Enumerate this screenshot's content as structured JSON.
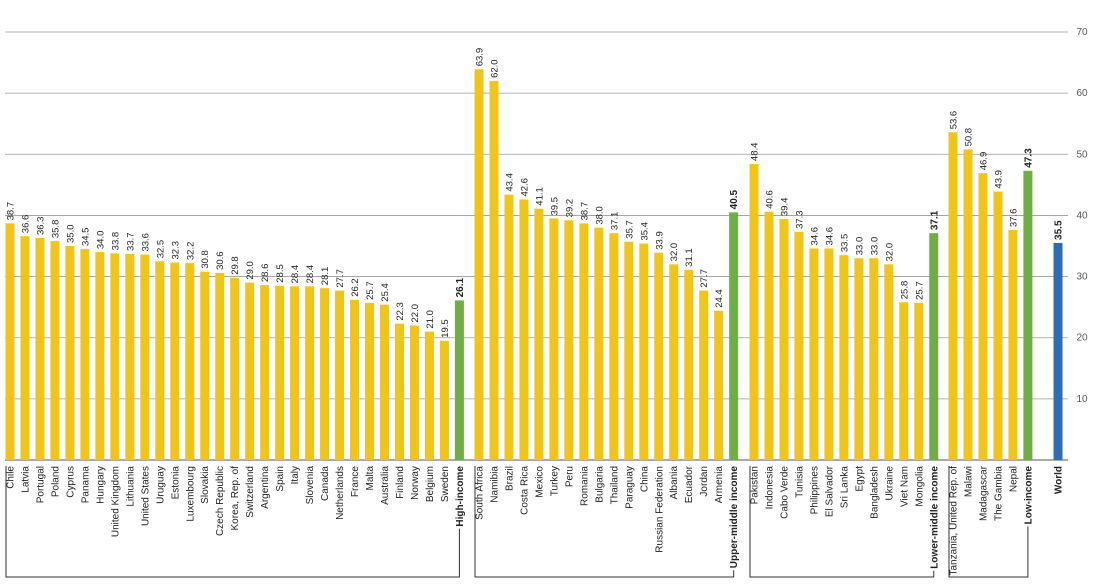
{
  "chart_data": {
    "type": "bar",
    "ylim": [
      0,
      70
    ],
    "yticks": [
      10,
      20,
      30,
      40,
      50,
      60,
      70
    ],
    "grid": true,
    "colors": {
      "country": "#f0c419",
      "group": "#70ad47",
      "world": "#2e6db4",
      "grid": "#9a9a9a",
      "axis": "#555555"
    },
    "groups": [
      {
        "name": "High-income",
        "value": 26.1,
        "countries": [
          {
            "name": "Chile",
            "value": 38.7
          },
          {
            "name": "Latvia",
            "value": 36.6
          },
          {
            "name": "Portugal",
            "value": 36.3
          },
          {
            "name": "Poland",
            "value": 35.8
          },
          {
            "name": "Cyprus",
            "value": 35.0
          },
          {
            "name": "Panama",
            "value": 34.5
          },
          {
            "name": "Hungary",
            "value": 34.0
          },
          {
            "name": "United Kingdom",
            "value": 33.8
          },
          {
            "name": "Lithuania",
            "value": 33.7
          },
          {
            "name": "United States",
            "value": 33.6
          },
          {
            "name": "Uruguay",
            "value": 32.5
          },
          {
            "name": "Estonia",
            "value": 32.3
          },
          {
            "name": "Luxembourg",
            "value": 32.2
          },
          {
            "name": "Slovakia",
            "value": 30.8
          },
          {
            "name": "Czech Republic",
            "value": 30.6
          },
          {
            "name": "Korea, Rep. of",
            "value": 29.8
          },
          {
            "name": "Switzerland",
            "value": 29.0
          },
          {
            "name": "Argentina",
            "value": 28.6
          },
          {
            "name": "Spain",
            "value": 28.5
          },
          {
            "name": "Italy",
            "value": 28.4
          },
          {
            "name": "Slovenia",
            "value": 28.4
          },
          {
            "name": "Canada",
            "value": 28.1
          },
          {
            "name": "Netherlands",
            "value": 27.7
          },
          {
            "name": "France",
            "value": 26.2
          },
          {
            "name": "Malta",
            "value": 25.7
          },
          {
            "name": "Australia",
            "value": 25.4
          },
          {
            "name": "Finland",
            "value": 22.3
          },
          {
            "name": "Norway",
            "value": 22.0
          },
          {
            "name": "Belgium",
            "value": 21.0
          },
          {
            "name": "Sweden",
            "value": 19.5
          }
        ]
      },
      {
        "name": "Upper-middle income",
        "value": 40.5,
        "countries": [
          {
            "name": "South Africa",
            "value": 63.9
          },
          {
            "name": "Namibia",
            "value": 62.0
          },
          {
            "name": "Brazil",
            "value": 43.4
          },
          {
            "name": "Costa Rica",
            "value": 42.6
          },
          {
            "name": "Mexico",
            "value": 41.1
          },
          {
            "name": "Turkey",
            "value": 39.5
          },
          {
            "name": "Peru",
            "value": 39.2
          },
          {
            "name": "Romania",
            "value": 38.7
          },
          {
            "name": "Bulgaria",
            "value": 38.0
          },
          {
            "name": "Thailand",
            "value": 37.1
          },
          {
            "name": "Paraguay",
            "value": 35.7
          },
          {
            "name": "China",
            "value": 35.4
          },
          {
            "name": "Russian Federation",
            "value": 33.9
          },
          {
            "name": "Albania",
            "value": 32.0
          },
          {
            "name": "Ecuador",
            "value": 31.1
          },
          {
            "name": "Jordan",
            "value": 27.7
          },
          {
            "name": "Armenia",
            "value": 24.4
          }
        ]
      },
      {
        "name": "Lower-middle income",
        "value": 37.1,
        "countries": [
          {
            "name": "Pakistan",
            "value": 48.4
          },
          {
            "name": "Indonesia",
            "value": 40.6
          },
          {
            "name": "Cabo Verde",
            "value": 39.4
          },
          {
            "name": "Tunisia",
            "value": 37.3
          },
          {
            "name": "Philippines",
            "value": 34.6
          },
          {
            "name": "El Salvador",
            "value": 34.6
          },
          {
            "name": "Sri Lanka",
            "value": 33.5
          },
          {
            "name": "Egypt",
            "value": 33.0
          },
          {
            "name": "Bangladesh",
            "value": 33.0
          },
          {
            "name": "Ukraine",
            "value": 32.0
          },
          {
            "name": "Viet Nam",
            "value": 25.8
          },
          {
            "name": "Mongolia",
            "value": 25.7
          }
        ]
      },
      {
        "name": "Low-income",
        "value": 47.3,
        "countries": [
          {
            "name": "Tanzania, United Rep. of",
            "value": 53.6
          },
          {
            "name": "Malawi",
            "value": 50.8
          },
          {
            "name": "Madagascar",
            "value": 46.9
          },
          {
            "name": "The Gambia",
            "value": 43.9
          },
          {
            "name": "Nepal",
            "value": 37.6
          }
        ]
      }
    ],
    "world": {
      "name": "World",
      "value": 35.5
    }
  }
}
